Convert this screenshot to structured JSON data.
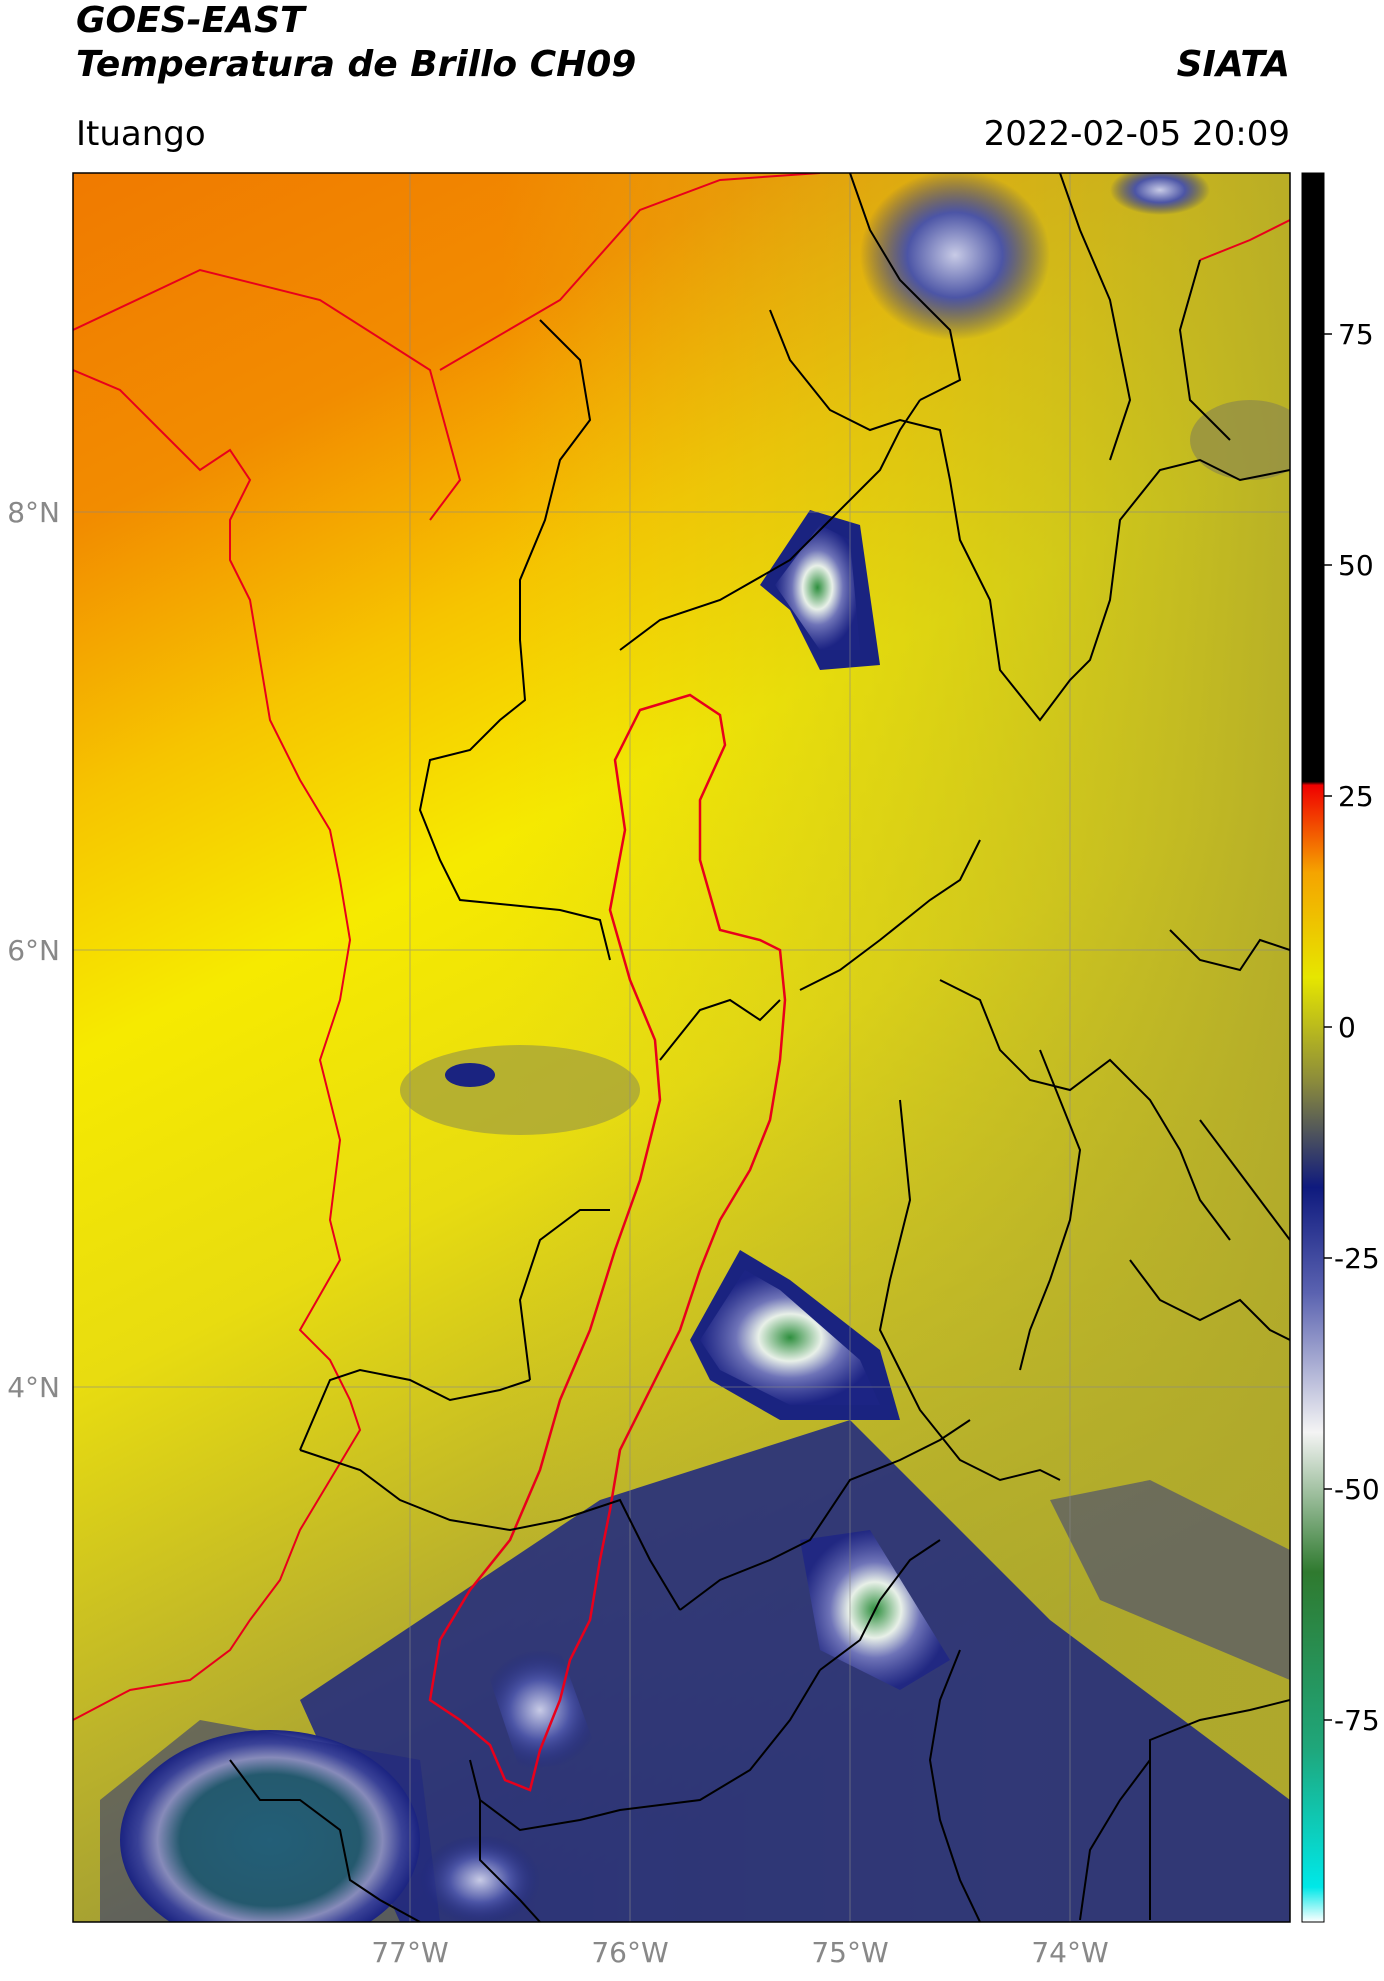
{
  "header": {
    "satellite": "GOES-EAST",
    "product": "Temperatura de Brillo CH09",
    "agency": "SIATA",
    "location": "Ituango",
    "datetime": "2022-02-05 20:09"
  },
  "map": {
    "lat_ticks": [
      "8°N",
      "6°N",
      "4°N"
    ],
    "lon_ticks": [
      "77°W",
      "76°W",
      "75°W",
      "74°W"
    ],
    "colors": {
      "warm": "#f07c00",
      "mid": "#f5e600",
      "cool": "#b7b026",
      "cold_blue": "#1e2a8c",
      "very_cold": "#3a8f4a",
      "border_red": "#e8001b",
      "border_black": "#000000",
      "grid": "#999999"
    }
  },
  "colorbar": {
    "ticks": [
      "75",
      "50",
      "25",
      "0",
      "-25",
      "-50",
      "-75"
    ]
  }
}
